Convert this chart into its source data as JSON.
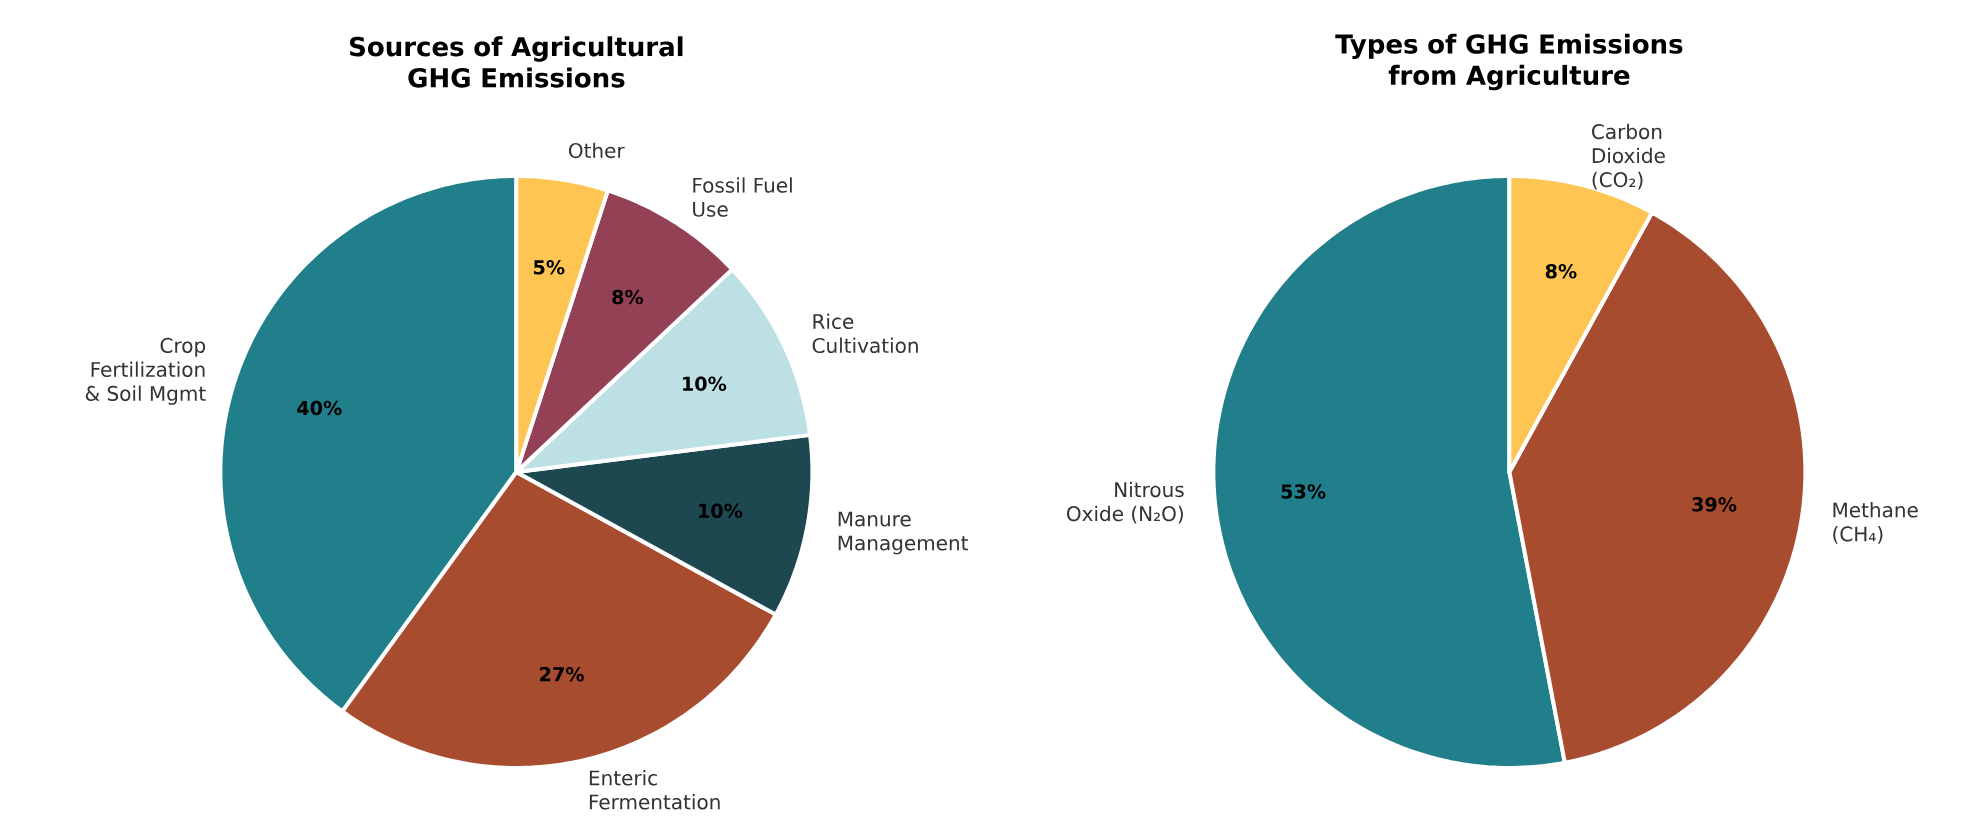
{
  "chart_data": [
    {
      "type": "pie",
      "title": "Sources of Agricultural GHG Emissions",
      "categories": [
        "Crop Fertilization & Soil Mgmt",
        "Enteric Fermentation",
        "Manure Management",
        "Rice Cultivation",
        "Fossil Fuel Use",
        "Other"
      ],
      "values": [
        40,
        27,
        10,
        10,
        8,
        5
      ],
      "value_labels": [
        "40%",
        "27%",
        "10%",
        "10%",
        "8%",
        "5%"
      ],
      "colors": [
        "#217f8b",
        "#a84c30",
        "#1d4850",
        "#bde0e5",
        "#944155",
        "#fec552"
      ]
    },
    {
      "type": "pie",
      "title": "Types of GHG Emissions from Agriculture",
      "categories": [
        "Nitrous Oxide (N₂O)",
        "Methane (CH₄)",
        "Carbon Dioxide (CO₂)"
      ],
      "values": [
        53,
        39,
        8
      ],
      "value_labels": [
        "53%",
        "39%",
        "8%"
      ],
      "colors": [
        "#217f8b",
        "#a84c30",
        "#fec552"
      ]
    }
  ]
}
